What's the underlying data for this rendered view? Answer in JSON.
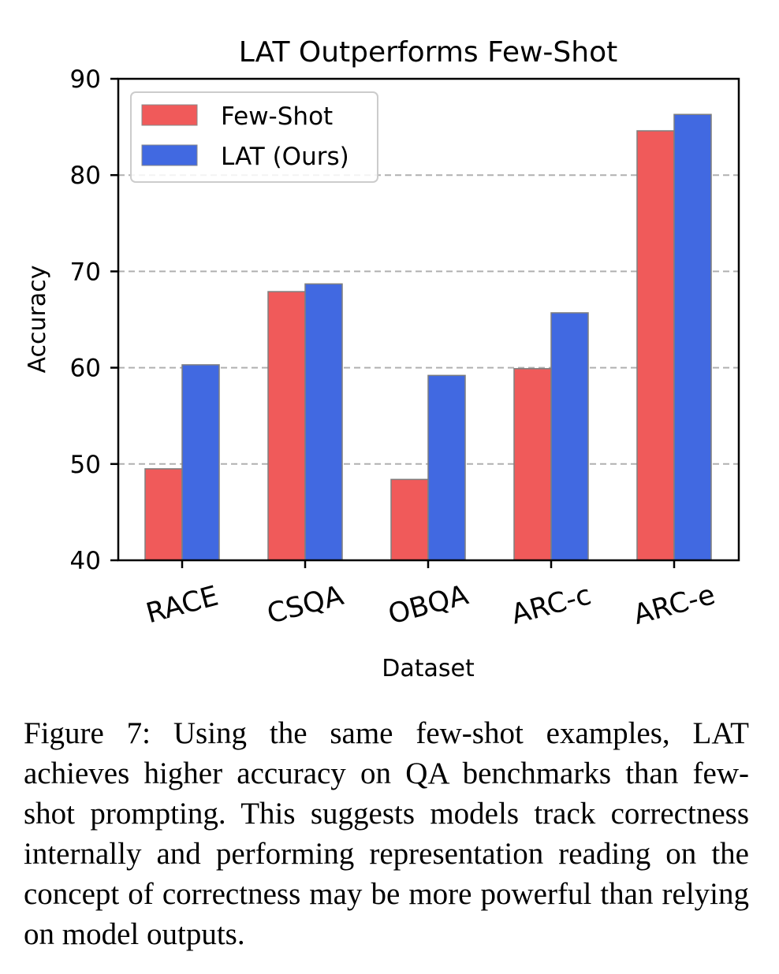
{
  "chart_data": {
    "type": "bar",
    "title": "LAT Outperforms Few-Shot",
    "xlabel": "Dataset",
    "ylabel": "Accuracy",
    "categories": [
      "RACE",
      "CSQA",
      "OBQA",
      "ARC-c",
      "ARC-e"
    ],
    "series": [
      {
        "name": "Few-Shot",
        "color": "#f05a5a",
        "values": [
          49.5,
          67.9,
          48.4,
          59.9,
          84.6
        ]
      },
      {
        "name": "LAT (Ours)",
        "color": "#4169e1",
        "values": [
          60.3,
          68.7,
          59.2,
          65.7,
          86.3
        ]
      }
    ],
    "ylim": [
      40,
      90
    ],
    "yticks": [
      "40",
      "50",
      "60",
      "70",
      "80",
      "90"
    ],
    "grid": "horizontal dashed",
    "legend_position": "top-left"
  },
  "caption": {
    "text": "Figure 7: Using the same few-shot examples, LAT achieves higher accuracy on QA benchmarks than few-shot prompting. This suggests models track correctness internally and performing representation reading on the concept of correctness may be more powerful than relying on model outputs."
  }
}
